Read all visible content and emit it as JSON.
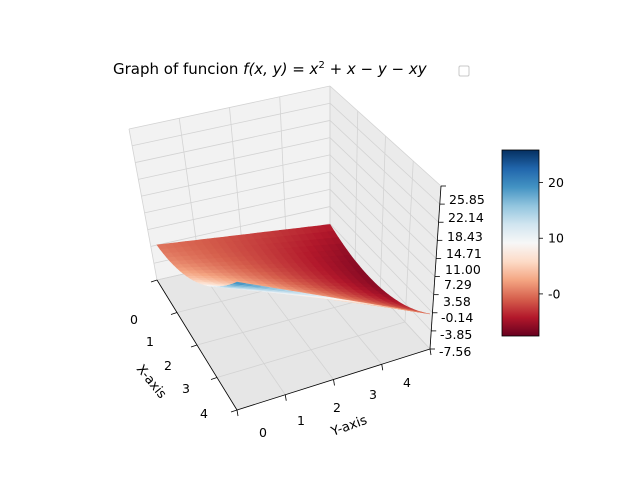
{
  "chart_data": {
    "type": "surface3d",
    "title": {
      "prefix": "Graph of funcion ",
      "formula_f": "f",
      "formula_args": "(x, y) = x",
      "formula_sup": "2",
      "formula_tail": " + x − y − xy"
    },
    "function": "x^2 + x - y - x*y",
    "xlabel": "X-axis",
    "ylabel": "Y-axis",
    "xlim": [
      0,
      4
    ],
    "ylim": [
      0,
      4
    ],
    "zlim": [
      -7.56,
      25.85
    ],
    "x_ticks": [
      "0",
      "1",
      "2",
      "3",
      "4"
    ],
    "y_ticks": [
      "0",
      "1",
      "2",
      "3",
      "4"
    ],
    "z_ticks": [
      "-7.56",
      "-3.85",
      "-0.14",
      "3.58",
      "7.29",
      "11.00",
      "14.71",
      "18.43",
      "22.14",
      "25.85"
    ],
    "colormap": "RdBu",
    "colormap_stops": [
      "#67001f",
      "#b2182b",
      "#d6604d",
      "#f4a582",
      "#fddbc7",
      "#f7f7f7",
      "#d1e5f0",
      "#92c5de",
      "#4393c3",
      "#2166ac",
      "#053061"
    ],
    "colorbar": {
      "ticks": [
        "-0",
        "10",
        "20"
      ],
      "tick_values": [
        0,
        10,
        20
      ],
      "range": [
        -7.56,
        25.85
      ]
    },
    "grid": true,
    "legend": {
      "placement": "top-right",
      "entries": [
        ""
      ]
    },
    "surface_corners": [
      {
        "x": 0,
        "y": 0,
        "z": 0
      },
      {
        "x": 4,
        "y": 0,
        "z": 20
      },
      {
        "x": 4,
        "y": 4,
        "z": 0
      },
      {
        "x": 0,
        "y": 4,
        "z": -4
      }
    ]
  }
}
